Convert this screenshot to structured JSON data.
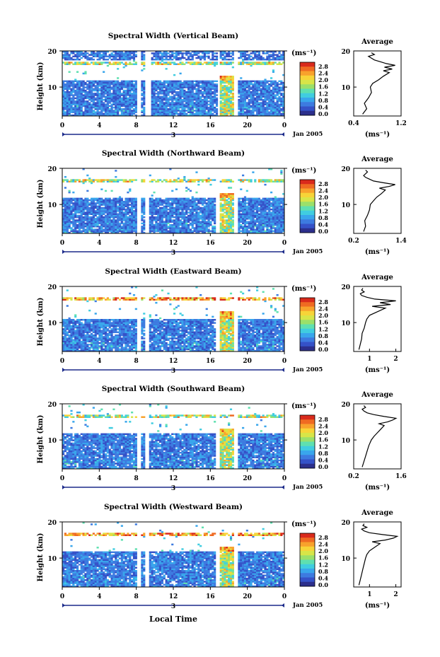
{
  "figure": {
    "bottom_xlabel": "Local Time",
    "date_label": "Jan 2005",
    "cb_unit_label": "(ms⁻¹)",
    "avg_title": "Average",
    "avg_xlabel": "(ms⁻¹)",
    "ylabel": "Height (km)"
  },
  "colors": {
    "colorbar": [
      "#2c2f8c",
      "#3552c8",
      "#3d7be0",
      "#39a6ec",
      "#40cde0",
      "#5fe0b0",
      "#9be06a",
      "#d8e548",
      "#f7d438",
      "#f8a22c",
      "#ef6a22",
      "#d92a1c"
    ],
    "profile": "#000000",
    "axis": "#000000",
    "timebar": "#1b2a8a"
  },
  "chart_data": [
    {
      "type": "heatmap",
      "title": "Spectral Width (Vertical Beam)",
      "ylabel": "Height (km)",
      "ylim": [
        2,
        20
      ],
      "yticks": [
        "10",
        "20"
      ],
      "xlim": [
        0,
        24
      ],
      "xticks": [
        "0",
        "4",
        "8",
        "12",
        "16",
        "20",
        "0"
      ],
      "day_marker": "3",
      "date": "Jan 2005",
      "colorbar": {
        "unit": "(ms⁻¹)",
        "ticks": [
          "2.8",
          "2.4",
          "2.0",
          "1.6",
          "1.2",
          "0.8",
          "0.4",
          "0.0"
        ],
        "range": [
          0.0,
          2.8
        ]
      },
      "data_gaps_hours": [
        [
          8.0,
          8.6
        ],
        [
          9.0,
          9.5
        ],
        [
          16.7,
          17.1
        ],
        [
          18.6,
          19.0
        ]
      ],
      "average_profile": {
        "title": "Average",
        "xlabel": "(ms⁻¹)",
        "xlim": [
          0.4,
          1.2
        ],
        "xticks": [
          "0.4",
          "1.2"
        ],
        "yticks": [
          "10",
          "20"
        ],
        "height_km": [
          2.5,
          4,
          5.5,
          7,
          8.5,
          10,
          11,
          12,
          13,
          14,
          14.5,
          15,
          15.5,
          16,
          16.5,
          17,
          17.5,
          18,
          18.5,
          19,
          19.5
        ],
        "value_ms": [
          0.55,
          0.62,
          0.58,
          0.65,
          0.7,
          0.68,
          0.72,
          0.82,
          0.9,
          1.0,
          0.9,
          1.05,
          0.92,
          1.1,
          0.95,
          0.85,
          0.75,
          0.7,
          0.65,
          0.75,
          0.7
        ]
      }
    },
    {
      "type": "heatmap",
      "title": "Spectral Width (Northward Beam)",
      "ylabel": "Height (km)",
      "ylim": [
        2,
        20
      ],
      "yticks": [
        "10",
        "20"
      ],
      "xlim": [
        0,
        24
      ],
      "xticks": [
        "0",
        "4",
        "8",
        "12",
        "16",
        "20",
        "0"
      ],
      "day_marker": "3",
      "date": "Jan 2005",
      "colorbar": {
        "unit": "(ms⁻¹)",
        "ticks": [
          "2.8",
          "2.4",
          "2.0",
          "1.6",
          "1.2",
          "0.8",
          "0.4",
          "0.0"
        ],
        "range": [
          0.0,
          2.8
        ]
      },
      "data_gaps_hours": [
        [
          8.0,
          8.5
        ],
        [
          8.9,
          9.3
        ],
        [
          16.5,
          17.0
        ],
        [
          18.6,
          19.0
        ]
      ],
      "average_profile": {
        "title": "Average",
        "xlabel": "(ms⁻¹)",
        "xlim": [
          0.2,
          1.4
        ],
        "xticks": [
          "0.2",
          "1.4"
        ],
        "yticks": [
          "10",
          "20"
        ],
        "height_km": [
          2.5,
          4,
          5.5,
          7,
          8.5,
          10,
          11,
          12,
          13,
          14,
          14.5,
          15,
          15.5,
          16,
          16.5,
          17,
          17.5,
          18,
          18.5,
          19,
          19.5
        ],
        "value_ms": [
          0.45,
          0.5,
          0.48,
          0.55,
          0.6,
          0.62,
          0.7,
          0.78,
          0.9,
          1.0,
          0.85,
          1.1,
          1.25,
          0.95,
          0.7,
          0.6,
          0.5,
          0.45,
          0.5,
          0.55,
          0.5
        ]
      }
    },
    {
      "type": "heatmap",
      "title": "Spectral Width (Eastward Beam)",
      "ylabel": "Height (km)",
      "ylim": [
        2,
        20
      ],
      "yticks": [
        "10",
        "20"
      ],
      "xlim": [
        0,
        24
      ],
      "xticks": [
        "0",
        "4",
        "8",
        "12",
        "16",
        "20",
        "0"
      ],
      "day_marker": "3",
      "date": "Jan 2005",
      "colorbar": {
        "unit": "(ms⁻¹)",
        "ticks": [
          "2.8",
          "2.4",
          "2.0",
          "1.6",
          "1.2",
          "0.8",
          "0.4",
          "0.0"
        ],
        "range": [
          0.0,
          2.8
        ]
      },
      "data_gaps_hours": [
        [
          8.0,
          8.5
        ],
        [
          8.9,
          9.3
        ],
        [
          16.5,
          17.0
        ],
        [
          18.6,
          19.0
        ]
      ],
      "average_profile": {
        "title": "Average",
        "xlabel": "(ms⁻¹)",
        "xlim": [
          0.4,
          2.2
        ],
        "xticks": [
          "1",
          "2"
        ],
        "yticks": [
          "10",
          "20"
        ],
        "height_km": [
          2.5,
          4,
          5.5,
          7,
          8.5,
          10,
          11,
          12,
          13,
          14,
          14.5,
          15,
          15.5,
          16,
          16.5,
          17,
          17.5,
          18,
          18.5,
          19,
          19.5
        ],
        "value_ms": [
          0.6,
          0.65,
          0.7,
          0.72,
          0.8,
          0.85,
          0.9,
          1.0,
          1.3,
          1.6,
          1.1,
          1.8,
          1.4,
          2.0,
          1.2,
          0.9,
          0.7,
          0.65,
          0.8,
          0.7,
          0.75
        ]
      }
    },
    {
      "type": "heatmap",
      "title": "Spectral Width (Southward Beam)",
      "ylabel": "Height (km)",
      "ylim": [
        2,
        20
      ],
      "yticks": [
        "10",
        "20"
      ],
      "xlim": [
        0,
        24
      ],
      "xticks": [
        "0",
        "4",
        "8",
        "12",
        "16",
        "20",
        "0"
      ],
      "day_marker": "3",
      "date": "Jan 2005",
      "colorbar": {
        "unit": "(ms⁻¹)",
        "ticks": [
          "2.8",
          "2.4",
          "2.0",
          "1.6",
          "1.2",
          "0.8",
          "0.4",
          "0.0"
        ],
        "range": [
          0.0,
          2.8
        ]
      },
      "data_gaps_hours": [
        [
          8.0,
          8.5
        ],
        [
          8.9,
          9.3
        ],
        [
          16.5,
          17.0
        ],
        [
          18.6,
          19.0
        ]
      ],
      "average_profile": {
        "title": "Average",
        "xlabel": "(ms⁻¹)",
        "xlim": [
          0.2,
          1.6
        ],
        "xticks": [
          "0.2",
          "1.6"
        ],
        "yticks": [
          "10",
          "20"
        ],
        "height_km": [
          2.5,
          4,
          5.5,
          7,
          8.5,
          10,
          11,
          12,
          13,
          14,
          14.5,
          15,
          15.5,
          16,
          16.5,
          17,
          17.5,
          18,
          18.5,
          19,
          19.5
        ],
        "value_ms": [
          0.45,
          0.5,
          0.55,
          0.6,
          0.65,
          0.72,
          0.8,
          0.9,
          1.0,
          1.1,
          0.95,
          1.2,
          1.35,
          1.45,
          1.1,
          0.8,
          0.6,
          0.5,
          0.45,
          0.55,
          0.5
        ]
      }
    },
    {
      "type": "heatmap",
      "title": "Spectral Width (Westward Beam)",
      "ylabel": "Height (km)",
      "ylim": [
        2,
        20
      ],
      "yticks": [
        "10",
        "20"
      ],
      "xlim": [
        0,
        24
      ],
      "xticks": [
        "0",
        "4",
        "8",
        "12",
        "16",
        "20",
        "0"
      ],
      "day_marker": "3",
      "date": "Jan 2005",
      "colorbar": {
        "unit": "(ms⁻¹)",
        "ticks": [
          "2.8",
          "2.4",
          "2.0",
          "1.6",
          "1.2",
          "0.8",
          "0.4",
          "0.0"
        ],
        "range": [
          0.0,
          2.8
        ]
      },
      "data_gaps_hours": [
        [
          8.0,
          8.5
        ],
        [
          8.9,
          9.3
        ],
        [
          16.5,
          17.0
        ],
        [
          18.6,
          19.0
        ]
      ],
      "average_profile": {
        "title": "Average",
        "xlabel": "(ms⁻¹)",
        "xlim": [
          0.4,
          2.2
        ],
        "xticks": [
          "1",
          "2"
        ],
        "yticks": [
          "10",
          "20"
        ],
        "height_km": [
          2.5,
          4,
          5.5,
          7,
          8.5,
          10,
          11,
          12,
          13,
          14,
          14.5,
          15,
          15.5,
          16,
          16.5,
          17,
          17.5,
          18,
          18.5,
          19,
          19.5
        ],
        "value_ms": [
          0.6,
          0.65,
          0.7,
          0.75,
          0.8,
          0.85,
          0.9,
          1.0,
          1.2,
          1.4,
          1.1,
          1.6,
          1.9,
          2.05,
          1.5,
          1.0,
          0.8,
          0.7,
          0.9,
          0.75,
          0.8
        ]
      }
    }
  ]
}
